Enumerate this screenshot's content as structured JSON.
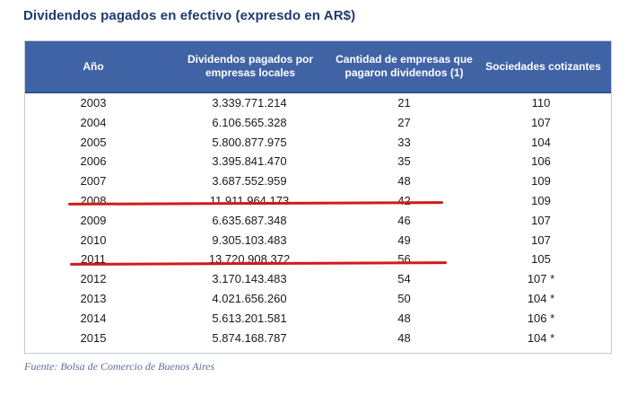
{
  "title": "Dividendos pagados en efectivo (expresdo en AR$)",
  "table": {
    "headers": [
      "Año",
      "Dividendos pagados por empresas locales",
      "Cantidad de empresas que pagaron dividendos (1)",
      "Sociedades cotizantes"
    ],
    "rows": [
      {
        "year": "2003",
        "dividends": "3.339.771.214",
        "companies": "21",
        "listed": "110"
      },
      {
        "year": "2004",
        "dividends": "6.106.565.328",
        "companies": "27",
        "listed": "107"
      },
      {
        "year": "2005",
        "dividends": "5.800.877.975",
        "companies": "33",
        "listed": "104"
      },
      {
        "year": "2006",
        "dividends": "3.395.841.470",
        "companies": "35",
        "listed": "106"
      },
      {
        "year": "2007",
        "dividends": "3.687.552.959",
        "companies": "48",
        "listed": "109"
      },
      {
        "year": "2008",
        "dividends": "11.911.964.173",
        "companies": "42",
        "listed": "109"
      },
      {
        "year": "2009",
        "dividends": "6.635.687.348",
        "companies": "46",
        "listed": "107"
      },
      {
        "year": "2010",
        "dividends": "9.305.103.483",
        "companies": "49",
        "listed": "107"
      },
      {
        "year": "2011",
        "dividends": "13.720.908.372",
        "companies": "56",
        "listed": "105"
      },
      {
        "year": "2012",
        "dividends": "3.170.143.483",
        "companies": "54",
        "listed": "107 *"
      },
      {
        "year": "2013",
        "dividends": "4.021.656.260",
        "companies": "50",
        "listed": "104 *"
      },
      {
        "year": "2014",
        "dividends": "5.613.201.581",
        "companies": "48",
        "listed": "106 *"
      },
      {
        "year": "2015",
        "dividends": "5.874.168.787",
        "companies": "48",
        "listed": "104 *"
      }
    ]
  },
  "highlight_color": "#d11a1a",
  "source": "Fuente: Bolsa de Comercio de Buenos Aires"
}
